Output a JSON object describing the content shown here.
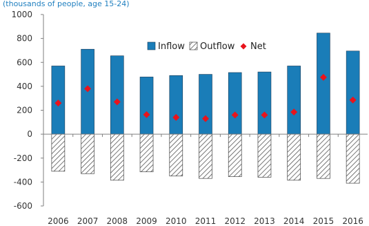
{
  "chart_data": {
    "type": "bar",
    "subtitle": "(thousands of people, age 15-24)",
    "categories": [
      "2006",
      "2007",
      "2008",
      "2009",
      "2010",
      "2011",
      "2012",
      "2013",
      "2014",
      "2015",
      "2016"
    ],
    "series": [
      {
        "name": "Inflow",
        "kind": "bar",
        "values": [
          570,
          710,
          655,
          478,
          490,
          500,
          515,
          520,
          570,
          845,
          695
        ]
      },
      {
        "name": "Outflow",
        "kind": "bar",
        "values": [
          -310,
          -330,
          -385,
          -315,
          -350,
          -370,
          -355,
          -360,
          -385,
          -370,
          -410
        ]
      },
      {
        "name": "Net",
        "kind": "marker",
        "values": [
          260,
          380,
          270,
          163,
          140,
          130,
          160,
          160,
          185,
          475,
          285
        ]
      }
    ],
    "ylim": [
      -600,
      1000
    ],
    "yticks": [
      -600,
      -400,
      -200,
      0,
      200,
      400,
      600,
      800,
      1000
    ],
    "grid": false,
    "legend_position": "top-center",
    "colors": {
      "inflow": "#1a7db8",
      "outflow_hatch": "#555555",
      "net": "#e8141c",
      "axis": "#7f7f7f"
    }
  }
}
